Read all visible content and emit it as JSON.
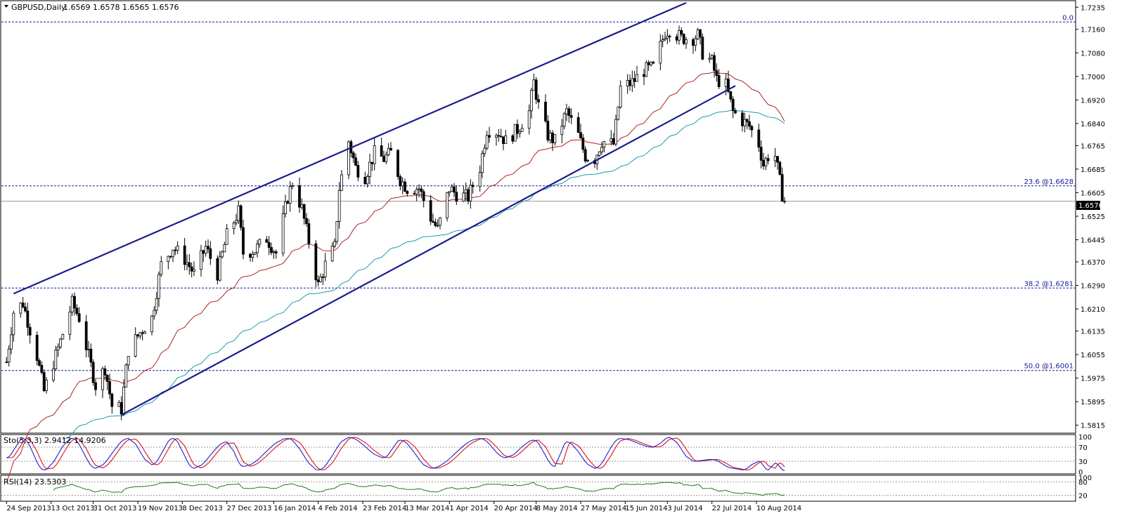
{
  "header": {
    "symbol_label": "GBPUSD,Daily",
    "ohlc": "1.6569 1.6578 1.6565 1.6576"
  },
  "price_axis": {
    "ticks": [
      "1.7235",
      "1.7160",
      "1.7080",
      "1.7000",
      "1.6920",
      "1.6840",
      "1.6765",
      "1.6685",
      "1.6605",
      "1.6525",
      "1.6445",
      "1.6370",
      "1.6290",
      "1.6210",
      "1.6135",
      "1.6055",
      "1.5975",
      "1.5895",
      "1.5815"
    ],
    "current_price": "1.6576"
  },
  "date_axis": {
    "labels": [
      "24 Sep 2013",
      "13 Oct 2013",
      "31 Oct 2013",
      "19 Nov 2013",
      "8 Dec 2013",
      "27 Dec 2013",
      "16 Jan 2014",
      "4 Feb 2014",
      "23 Feb 2014",
      "13 Mar 2014",
      "1 Apr 2014",
      "20 Apr 2014",
      "8 May 2014",
      "27 May 2014",
      "15 Jun 2014",
      "3 Jul 2014",
      "22 Jul 2014",
      "10 Aug 2014"
    ]
  },
  "fib_levels": [
    {
      "label": "0.0",
      "value": 1.7185
    },
    {
      "label": "23.6 @1.6628",
      "value": 1.6628
    },
    {
      "label": "38.2 @1.6281",
      "value": 1.6281
    },
    {
      "label": "50.0 @1.6001",
      "value": 1.6001
    }
  ],
  "stoch_panel": {
    "label": "Sto(5,3,3) 2.9412 14.9206",
    "ticks": [
      "100",
      "70",
      "30",
      "0"
    ]
  },
  "rsi_panel": {
    "label": "RSI(14) 23.5303",
    "ticks": [
      "100",
      "80",
      "20"
    ]
  },
  "colors": {
    "channel": "#1b1b8f",
    "ma_fast": "#b22222",
    "ma_slow": "#1e9aa8",
    "fib": "#1a1a9a",
    "stoch_main": "#1f1fcc",
    "stoch_signal": "#dd1111",
    "rsi": "#1f7a1f"
  },
  "chart_data": {
    "type": "candlestick",
    "symbol": "GBPUSD",
    "timeframe": "Daily",
    "ylim": [
      1.58,
      1.725
    ],
    "last": {
      "open": 1.6569,
      "high": 1.6578,
      "low": 1.6565,
      "close": 1.6576
    },
    "close_path": [
      {
        "date": "2013-09-24",
        "close": 1.603
      },
      {
        "date": "2013-09-27",
        "close": 1.62
      },
      {
        "date": "2013-10-01",
        "close": 1.623
      },
      {
        "date": "2013-10-07",
        "close": 1.605
      },
      {
        "date": "2013-10-10",
        "close": 1.593
      },
      {
        "date": "2013-10-17",
        "close": 1.61
      },
      {
        "date": "2013-10-22",
        "close": 1.623
      },
      {
        "date": "2013-10-25",
        "close": 1.618
      },
      {
        "date": "2013-10-29",
        "close": 1.605
      },
      {
        "date": "2013-11-01",
        "close": 1.595
      },
      {
        "date": "2013-11-05",
        "close": 1.601
      },
      {
        "date": "2013-11-08",
        "close": 1.588
      },
      {
        "date": "2013-11-12",
        "close": 1.587
      },
      {
        "date": "2013-11-15",
        "close": 1.607
      },
      {
        "date": "2013-11-20",
        "close": 1.613
      },
      {
        "date": "2013-11-25",
        "close": 1.618
      },
      {
        "date": "2013-11-29",
        "close": 1.636
      },
      {
        "date": "2013-12-04",
        "close": 1.642
      },
      {
        "date": "2013-12-09",
        "close": 1.638
      },
      {
        "date": "2013-12-13",
        "close": 1.633
      },
      {
        "date": "2013-12-18",
        "close": 1.642
      },
      {
        "date": "2013-12-23",
        "close": 1.633
      },
      {
        "date": "2013-12-27",
        "close": 1.646
      },
      {
        "date": "2014-01-01",
        "close": 1.654
      },
      {
        "date": "2014-01-03",
        "close": 1.64
      },
      {
        "date": "2014-01-08",
        "close": 1.641
      },
      {
        "date": "2014-01-13",
        "close": 1.645
      },
      {
        "date": "2014-01-17",
        "close": 1.64
      },
      {
        "date": "2014-01-22",
        "close": 1.659
      },
      {
        "date": "2014-01-24",
        "close": 1.664
      },
      {
        "date": "2014-01-28",
        "close": 1.655
      },
      {
        "date": "2014-01-31",
        "close": 1.644
      },
      {
        "date": "2014-02-04",
        "close": 1.629
      },
      {
        "date": "2014-02-07",
        "close": 1.636
      },
      {
        "date": "2014-02-11",
        "close": 1.642
      },
      {
        "date": "2014-02-13",
        "close": 1.662
      },
      {
        "date": "2014-02-17",
        "close": 1.678
      },
      {
        "date": "2014-02-20",
        "close": 1.669
      },
      {
        "date": "2014-02-24",
        "close": 1.666
      },
      {
        "date": "2014-02-28",
        "close": 1.674
      },
      {
        "date": "2014-03-04",
        "close": 1.672
      },
      {
        "date": "2014-03-07",
        "close": 1.674
      },
      {
        "date": "2014-03-11",
        "close": 1.665
      },
      {
        "date": "2014-03-14",
        "close": 1.662
      },
      {
        "date": "2014-03-19",
        "close": 1.662
      },
      {
        "date": "2014-03-24",
        "close": 1.652
      },
      {
        "date": "2014-03-27",
        "close": 1.648
      },
      {
        "date": "2014-04-01",
        "close": 1.662
      },
      {
        "date": "2014-04-04",
        "close": 1.66
      },
      {
        "date": "2014-04-09",
        "close": 1.659
      },
      {
        "date": "2014-04-14",
        "close": 1.669
      },
      {
        "date": "2014-04-17",
        "close": 1.682
      },
      {
        "date": "2014-04-22",
        "close": 1.681
      },
      {
        "date": "2014-04-25",
        "close": 1.678
      },
      {
        "date": "2014-04-30",
        "close": 1.682
      },
      {
        "date": "2014-05-05",
        "close": 1.688
      },
      {
        "date": "2014-05-07",
        "close": 1.698
      },
      {
        "date": "2014-05-09",
        "close": 1.69
      },
      {
        "date": "2014-05-13",
        "close": 1.68
      },
      {
        "date": "2014-05-16",
        "close": 1.678
      },
      {
        "date": "2014-05-21",
        "close": 1.688
      },
      {
        "date": "2014-05-26",
        "close": 1.68
      },
      {
        "date": "2014-05-29",
        "close": 1.673
      },
      {
        "date": "2014-06-02",
        "close": 1.672
      },
      {
        "date": "2014-06-05",
        "close": 1.678
      },
      {
        "date": "2014-06-10",
        "close": 1.677
      },
      {
        "date": "2014-06-13",
        "close": 1.696
      },
      {
        "date": "2014-06-18",
        "close": 1.698
      },
      {
        "date": "2014-06-23",
        "close": 1.702
      },
      {
        "date": "2014-06-27",
        "close": 1.703
      },
      {
        "date": "2014-07-02",
        "close": 1.715
      },
      {
        "date": "2014-07-04",
        "close": 1.716
      },
      {
        "date": "2014-07-09",
        "close": 1.713
      },
      {
        "date": "2014-07-14",
        "close": 1.713
      },
      {
        "date": "2014-07-16",
        "close": 1.714
      },
      {
        "date": "2014-07-18",
        "close": 1.708
      },
      {
        "date": "2014-07-22",
        "close": 1.705
      },
      {
        "date": "2014-07-24",
        "close": 1.699
      },
      {
        "date": "2014-07-28",
        "close": 1.697
      },
      {
        "date": "2014-07-31",
        "close": 1.688
      },
      {
        "date": "2014-08-04",
        "close": 1.685
      },
      {
        "date": "2014-08-07",
        "close": 1.683
      },
      {
        "date": "2014-08-11",
        "close": 1.677
      },
      {
        "date": "2014-08-13",
        "close": 1.67
      },
      {
        "date": "2014-08-15",
        "close": 1.673
      },
      {
        "date": "2014-08-18",
        "close": 1.673
      },
      {
        "date": "2014-08-21",
        "close": 1.66
      },
      {
        "date": "2014-08-22",
        "close": 1.6576
      }
    ],
    "channel": {
      "upper": [
        {
          "date": "2013-09-27",
          "price": 1.6262
        },
        {
          "date": "2014-07-11",
          "price": 1.725
        }
      ],
      "lower": [
        {
          "date": "2013-11-12",
          "price": 1.585
        },
        {
          "date": "2014-08-01",
          "price": 1.6968
        }
      ]
    },
    "stochastic": {
      "k": 2.9412,
      "d": 14.9206,
      "levels": [
        30,
        70
      ],
      "ylim": [
        0,
        100
      ],
      "oscillation": [
        {
          "date": "2013-09-24",
          "value": 40
        },
        {
          "date": "2013-10-01",
          "value": 95
        },
        {
          "date": "2013-10-10",
          "value": 5
        },
        {
          "date": "2013-10-22",
          "value": 95
        },
        {
          "date": "2013-11-01",
          "value": 10
        },
        {
          "date": "2013-11-15",
          "value": 95
        },
        {
          "date": "2013-11-25",
          "value": 20
        },
        {
          "date": "2013-12-04",
          "value": 95
        },
        {
          "date": "2013-12-13",
          "value": 10
        },
        {
          "date": "2013-12-27",
          "value": 85
        },
        {
          "date": "2014-01-03",
          "value": 15
        },
        {
          "date": "2014-01-22",
          "value": 95
        },
        {
          "date": "2014-02-04",
          "value": 5
        },
        {
          "date": "2014-02-17",
          "value": 98
        },
        {
          "date": "2014-03-04",
          "value": 40
        },
        {
          "date": "2014-03-11",
          "value": 90
        },
        {
          "date": "2014-03-24",
          "value": 10
        },
        {
          "date": "2014-04-14",
          "value": 95
        },
        {
          "date": "2014-04-25",
          "value": 40
        },
        {
          "date": "2014-05-07",
          "value": 90
        },
        {
          "date": "2014-05-16",
          "value": 15
        },
        {
          "date": "2014-05-21",
          "value": 85
        },
        {
          "date": "2014-06-02",
          "value": 10
        },
        {
          "date": "2014-06-13",
          "value": 95
        },
        {
          "date": "2014-06-27",
          "value": 70
        },
        {
          "date": "2014-07-04",
          "value": 98
        },
        {
          "date": "2014-07-14",
          "value": 30
        },
        {
          "date": "2014-07-22",
          "value": 35
        },
        {
          "date": "2014-07-31",
          "value": 10
        },
        {
          "date": "2014-08-04",
          "value": 5
        },
        {
          "date": "2014-08-11",
          "value": 30
        },
        {
          "date": "2014-08-15",
          "value": 5
        },
        {
          "date": "2014-08-18",
          "value": 25
        },
        {
          "date": "2014-08-22",
          "value": 3
        }
      ]
    },
    "rsi": {
      "value": 23.5303,
      "levels": [
        20,
        80
      ],
      "ylim": [
        0,
        100
      ]
    }
  }
}
